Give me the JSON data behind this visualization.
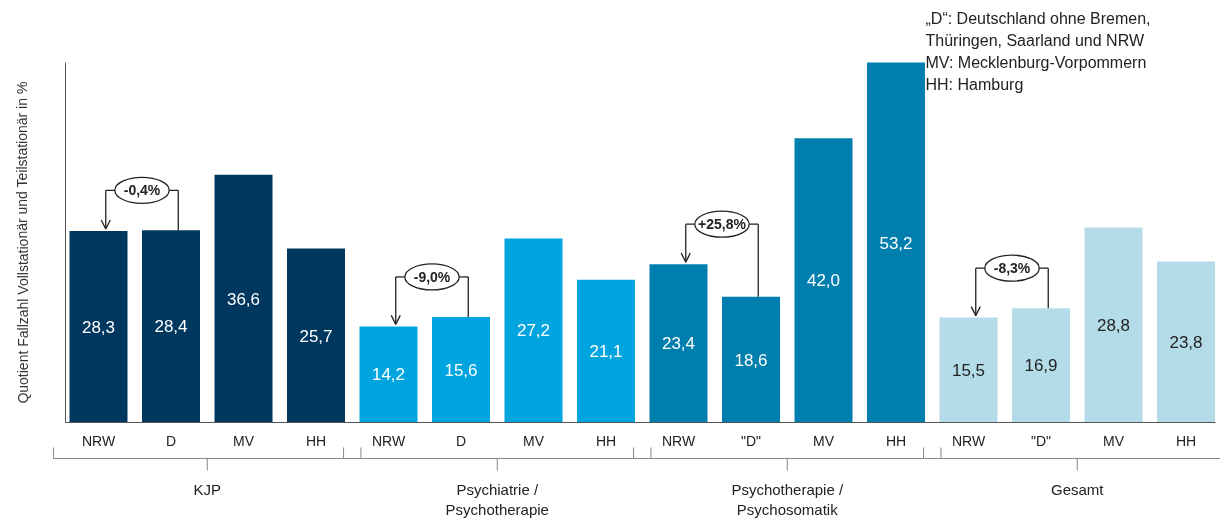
{
  "chart_data": {
    "type": "bar",
    "ylabel": "Quotient Fallzahl Vollstationär und Teilstationär in %",
    "categories": [
      "NRW",
      "D",
      "MV",
      "HH",
      "NRW",
      "D",
      "MV",
      "HH",
      "NRW",
      "\"D\"",
      "MV",
      "HH",
      "NRW",
      "\"D\"",
      "MV",
      "HH"
    ],
    "values": [
      28.3,
      28.4,
      36.6,
      25.7,
      14.2,
      15.6,
      27.2,
      21.1,
      23.4,
      18.6,
      42.0,
      53.2,
      15.5,
      16.9,
      28.8,
      23.8
    ],
    "value_labels": [
      "28,3",
      "28,4",
      "36,6",
      "25,7",
      "14,2",
      "15,6",
      "27,2",
      "21,1",
      "23,4",
      "18,6",
      "42,0",
      "53,2",
      "15,5",
      "16,9",
      "28,8",
      "23,8"
    ],
    "colors": [
      "#00375f",
      "#00375f",
      "#00375f",
      "#00375f",
      "#00a5e0",
      "#00a5e0",
      "#00a5e0",
      "#00a5e0",
      "#007fae",
      "#007fae",
      "#007fae",
      "#007fae",
      "#b4dce8",
      "#b4dce8",
      "#b4dce8",
      "#b4dce8"
    ],
    "ylim": [
      0,
      53.2
    ],
    "annotations": [
      "KJP",
      "Psychiatrie / Psychotherapie",
      "Psychotherapie / Psychosomatik",
      "Gesamt",
      "-0,4%",
      "-9,0%",
      "+25,8%",
      "-8,3%",
      "„D“: Deutschland ohne Bremen,",
      "Thüringen, Saarland und NRW",
      "MV: Mecklenburg-Vorpommern",
      "HH: Hamburg"
    ],
    "grid": false
  }
}
